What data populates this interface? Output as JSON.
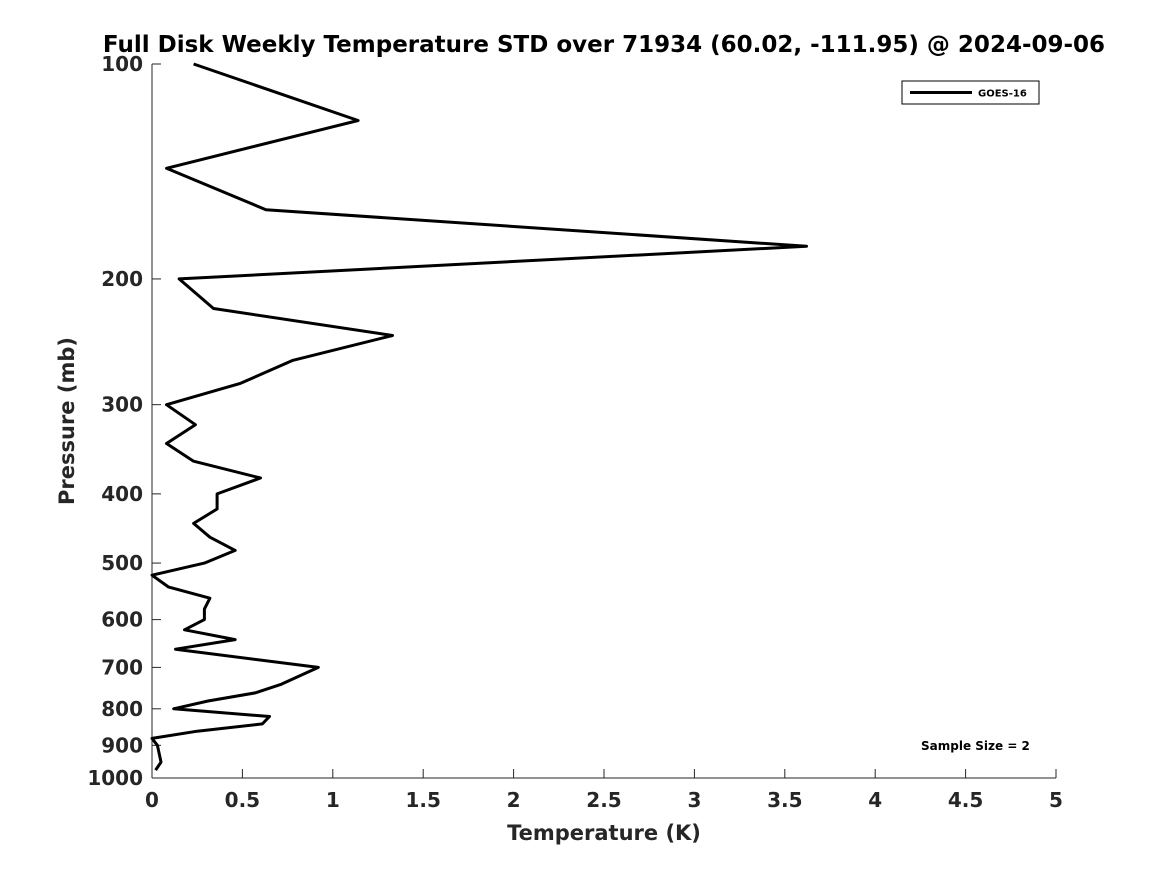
{
  "chart_data": {
    "type": "line",
    "title": "Full Disk Weekly Temperature STD over 71934 (60.02, -111.95) @ 2024-09-06",
    "xlabel": "Temperature (K)",
    "ylabel": "Pressure (mb)",
    "xlim": [
      0,
      5
    ],
    "ylim": [
      100,
      1000
    ],
    "yscale": "log",
    "yreversed": true,
    "grid": false,
    "xticks": [
      "0",
      "0.5",
      "1",
      "1.5",
      "2",
      "2.5",
      "3",
      "3.5",
      "4",
      "4.5",
      "5"
    ],
    "yticks": [
      "100",
      "200",
      "300",
      "400",
      "500",
      "600",
      "700",
      "800",
      "900",
      "1000"
    ],
    "legend": {
      "position": "top-right",
      "entries": [
        "GOES-16"
      ]
    },
    "annotation": "Sample Size = 2",
    "series": [
      {
        "name": "GOES-16",
        "color": "#000000",
        "points": [
          [
            0.23,
            100
          ],
          [
            1.14,
            120
          ],
          [
            0.08,
            140
          ],
          [
            0.63,
            160
          ],
          [
            3.62,
            180
          ],
          [
            0.15,
            200
          ],
          [
            0.34,
            220
          ],
          [
            1.33,
            240
          ],
          [
            0.78,
            260
          ],
          [
            0.49,
            280
          ],
          [
            0.08,
            300
          ],
          [
            0.24,
            320
          ],
          [
            0.08,
            340
          ],
          [
            0.23,
            360
          ],
          [
            0.6,
            380
          ],
          [
            0.36,
            400
          ],
          [
            0.36,
            420
          ],
          [
            0.23,
            440
          ],
          [
            0.32,
            460
          ],
          [
            0.46,
            480
          ],
          [
            0.29,
            500
          ],
          [
            0.0,
            520
          ],
          [
            0.09,
            540
          ],
          [
            0.32,
            560
          ],
          [
            0.29,
            580
          ],
          [
            0.29,
            600
          ],
          [
            0.18,
            620
          ],
          [
            0.46,
            640
          ],
          [
            0.13,
            660
          ],
          [
            0.92,
            700
          ],
          [
            0.71,
            740
          ],
          [
            0.57,
            760
          ],
          [
            0.31,
            780
          ],
          [
            0.12,
            800
          ],
          [
            0.65,
            820
          ],
          [
            0.61,
            840
          ],
          [
            0.25,
            860
          ],
          [
            0.0,
            880
          ],
          [
            0.03,
            900
          ],
          [
            0.05,
            950
          ],
          [
            0.02,
            975
          ]
        ]
      }
    ]
  }
}
